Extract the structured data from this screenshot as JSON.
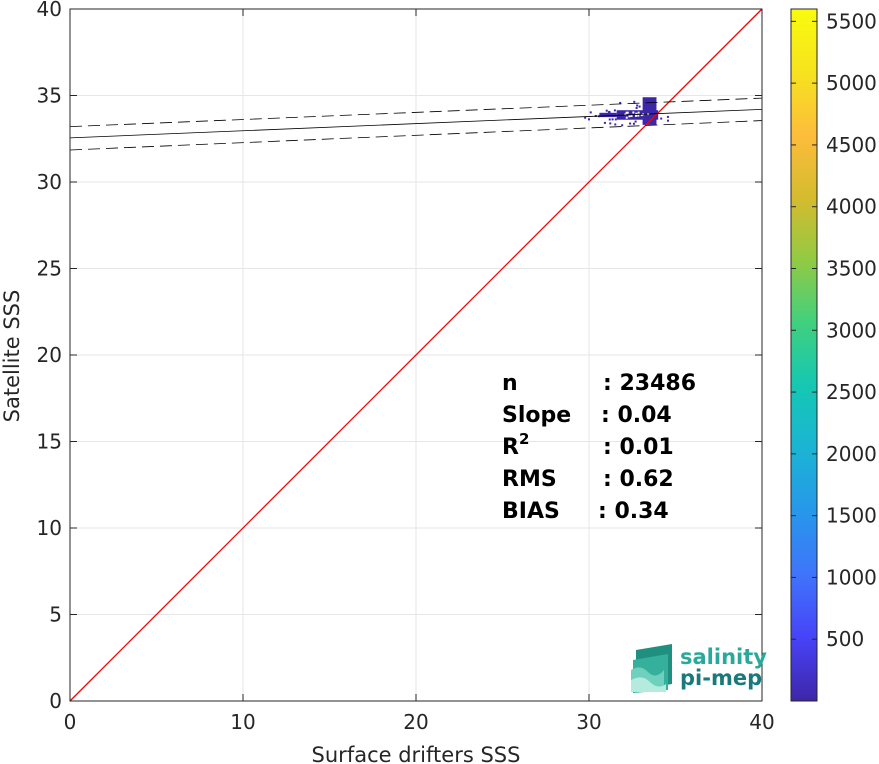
{
  "chart_data": {
    "type": "heatmap",
    "xlabel": "Surface drifters SSS",
    "ylabel": "Satellite SSS",
    "xlim": [
      0,
      40
    ],
    "ylim": [
      0,
      40
    ],
    "xticks": [
      0,
      10,
      20,
      30,
      40
    ],
    "yticks": [
      0,
      5,
      10,
      15,
      20,
      25,
      30,
      35,
      40
    ],
    "grid": true,
    "one_to_one_line": {
      "x": [
        0,
        40
      ],
      "y": [
        0,
        40
      ],
      "color": "#ff0000"
    },
    "regression_line": {
      "x": [
        0,
        40
      ],
      "y": [
        32.55,
        34.2
      ],
      "color": "#000000",
      "style": "solid"
    },
    "confidence_bounds": [
      {
        "x": [
          0,
          40
        ],
        "y": [
          33.2,
          34.85
        ],
        "style": "dashed"
      },
      {
        "x": [
          0,
          40
        ],
        "y": [
          31.85,
          33.55
        ],
        "style": "dashed"
      }
    ],
    "density_cluster": {
      "x_range": [
        28.2,
        34.8
      ],
      "y_range": [
        33.3,
        34.9
      ],
      "center": [
        33.0,
        33.9
      ],
      "color": "#3e26a8"
    },
    "colorbar": {
      "ticks": [
        500,
        1000,
        1500,
        2000,
        2500,
        3000,
        3500,
        4000,
        4500,
        5000,
        5500
      ],
      "range": [
        0,
        5600
      ],
      "colormap": "parula",
      "stops": [
        "#3e26a8",
        "#4743f8",
        "#3f74fb",
        "#2797eb",
        "#1bb4d4",
        "#15c7b3",
        "#3fd07f",
        "#91ca44",
        "#d5bb2e",
        "#fdbd3b",
        "#f6e31e",
        "#f9fb0e"
      ]
    },
    "stats": [
      {
        "label": "n",
        "sep": ": 23486"
      },
      {
        "label": "Slope",
        "sep": ": 0.04"
      },
      {
        "label": "R",
        "sup": "2",
        "sep": ": 0.01"
      },
      {
        "label": "RMS",
        "sep": ": 0.62"
      },
      {
        "label": "BIAS",
        "sep": ": 0.34"
      }
    ]
  },
  "logo": {
    "line1": "salinity",
    "line2": "pi-mep"
  },
  "colors": {
    "axis": "#262626",
    "grid": "#e6e6e6",
    "logo1": "#2aa99a",
    "logo2": "#1a7a7a"
  }
}
